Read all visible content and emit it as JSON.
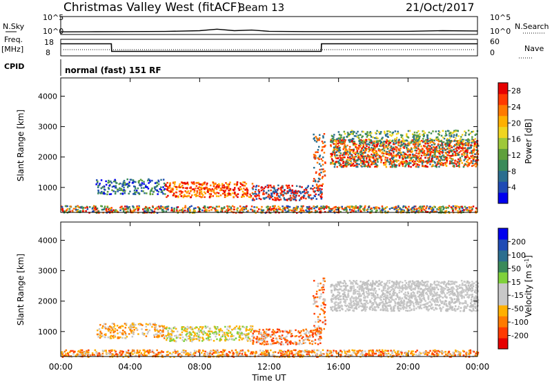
{
  "header": {
    "station": "Christmas Valley West (fitACF)",
    "beam": "Beam 13",
    "date": "21/Oct/2017"
  },
  "panels": {
    "nsky": {
      "label": "N.Sky",
      "left_ticks": [
        "10^5",
        "10^0"
      ],
      "right_ticks": [
        "10^5",
        "10^0"
      ],
      "right_label": "N.Search"
    },
    "freq": {
      "label_line1": "Freq.",
      "label_line2": "[MHz]",
      "left_ticks": [
        "18",
        "8"
      ],
      "right_ticks": [
        "60",
        "0"
      ],
      "right_label": "Nave"
    },
    "cpid": {
      "label": "CPID",
      "mode": "normal (fast) 151 RF"
    }
  },
  "colors": {
    "power_scale": [
      "#0000ee",
      "#1f4bb5",
      "#2b6e8f",
      "#3a8a5a",
      "#5fa03c",
      "#9ec83a",
      "#f0d520",
      "#ffb000",
      "#ff7a00",
      "#ff3a00",
      "#e60000"
    ],
    "velocity_scale": [
      "#e60000",
      "#ff3a00",
      "#ff7a00",
      "#ffb000",
      "#c8c8c8",
      "#c8c8c8",
      "#7fd13b",
      "#3a8a5a",
      "#2b6e8f",
      "#1f4bb5",
      "#0000ee"
    ]
  },
  "chart_data": [
    {
      "type": "line",
      "name": "nsky-nsearch",
      "x": [
        "00:00",
        "02:00",
        "04:00",
        "06:00",
        "08:00",
        "09:00",
        "10:00",
        "11:00",
        "12:00",
        "14:00",
        "16:00",
        "18:00",
        "20:00",
        "22:00",
        "24:00"
      ],
      "series": [
        {
          "name": "N.Sky",
          "values": [
            0.4,
            0.45,
            0.5,
            0.55,
            0.8,
            1.3,
            0.8,
            1.0,
            0.6,
            0.5,
            0.5,
            0.55,
            0.6,
            0.8,
            0.7
          ]
        }
      ],
      "ylim": [
        0,
        5
      ]
    },
    {
      "type": "line",
      "name": "frequency",
      "x": [
        "00:00",
        "02:55",
        "02:56",
        "15:00",
        "15:01",
        "24:00"
      ],
      "series": [
        {
          "name": "Freq.",
          "values": [
            15.5,
            15.5,
            10.5,
            10.5,
            15.5,
            15.5
          ]
        }
      ],
      "ylim": [
        8,
        18
      ],
      "ylabel": "Freq. [MHz]"
    },
    {
      "type": "heatmap",
      "name": "power",
      "xlabel": "Time UT",
      "ylabel": "Slant Range [km]",
      "x_ticks": [
        "00:00",
        "04:00",
        "08:00",
        "12:00",
        "16:00",
        "20:00",
        "00:00"
      ],
      "y_ticks": [
        "1000",
        "2000",
        "3000",
        "4000"
      ],
      "ylim": [
        180,
        4600
      ],
      "colorbar": {
        "label": "Power [dB]",
        "ticks": [
          "4",
          "8",
          "12",
          "16",
          "20",
          "24",
          "28"
        ],
        "range": [
          0,
          30
        ]
      }
    },
    {
      "type": "heatmap",
      "name": "velocity",
      "xlabel": "Time UT",
      "ylabel": "Slant Range [km]",
      "x_ticks": [
        "00:00",
        "04:00",
        "08:00",
        "12:00",
        "16:00",
        "20:00",
        "00:00"
      ],
      "y_ticks": [
        "1000",
        "2000",
        "3000",
        "4000"
      ],
      "ylim": [
        180,
        4600
      ],
      "colorbar": {
        "label": "Velocity [m s",
        "label_sup": "-1",
        "label_end": "]",
        "ticks": [
          "200",
          "100",
          "50",
          "15",
          "-15",
          "-50",
          "-100",
          "-200"
        ],
        "range": [
          -250,
          250
        ]
      }
    }
  ],
  "axes": {
    "x_title": "Time UT"
  }
}
